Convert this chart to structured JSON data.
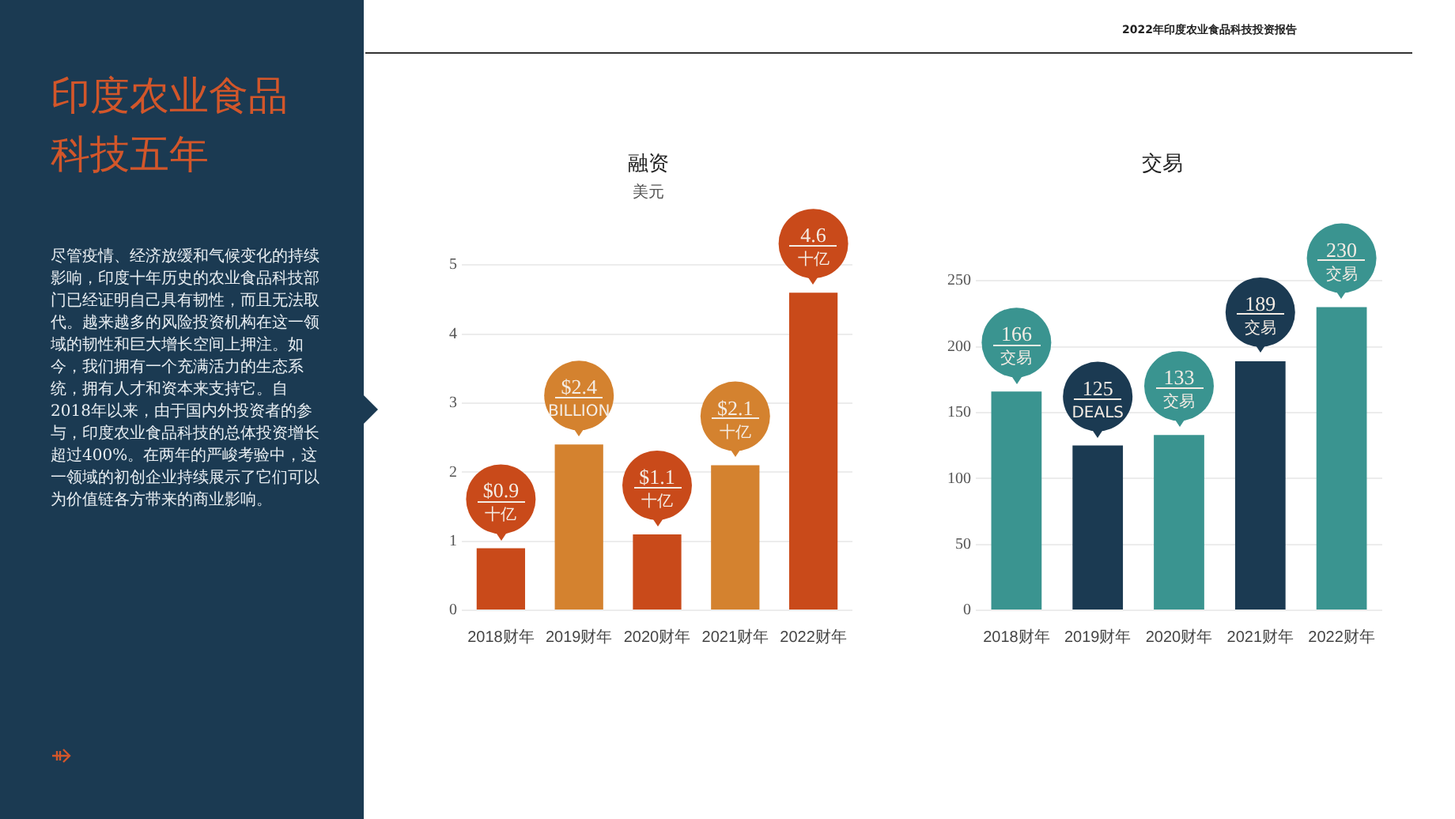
{
  "chart_data": [
    {
      "type": "other",
      "title": "印度农业食品科技五年",
      "annotations": [
        "尽管疫情、经济放缓和气候变化的持续影响，印度十年历史的农业食品科技部门已经证明自己具有韧性，而且无法取代。越来越多的风险投资机构在这一领域的韧性和巨大增长空间上押注。如今，我们拥有一个充满活力的生态系统，拥有人才和资本来支持它。自2018年以来，由于国内外投资者的参与，印度农业食品科技的总体投资增长超过400%。在两年的严峻考验中，这一领域的初创企业持续展示了它们可以为价值链各方带来的商业影响。",
        "2022年印度农业食品科技投资报告"
      ]
    },
    {
      "type": "bar",
      "title": "融资",
      "subtitle": "美元",
      "categories": [
        "2018财年",
        "2019财年",
        "2020财年",
        "2021财年",
        "2022财年"
      ],
      "values": [
        0.9,
        2.4,
        1.1,
        2.1,
        4.6
      ],
      "colors": [
        "#c94a1a",
        "#d4822f",
        "#c94a1a",
        "#d4822f",
        "#c94a1a"
      ],
      "value_labels": [
        "$0.9\n十亿",
        "$2.4\nBILLION",
        "$1.1\n十亿",
        "$2.1\n十亿",
        "4.6\n十亿"
      ],
      "ylim": [
        0,
        5
      ],
      "yticks": [
        0,
        1,
        2,
        3,
        4,
        5
      ],
      "grid": "y",
      "legend": false
    },
    {
      "type": "bar",
      "title": "交易",
      "categories": [
        "2018财年",
        "2019财年",
        "2020财年",
        "2021财年",
        "2022财年"
      ],
      "values": [
        166,
        125,
        133,
        189,
        230
      ],
      "colors": [
        "#3a9490",
        "#1b3a52",
        "#3a9490",
        "#1b3a52",
        "#3a9490"
      ],
      "value_labels": [
        "166\n交易",
        "125\nDEALS",
        "133\n交易",
        "189\n交易",
        "230\n交易"
      ],
      "ylim": [
        0,
        250
      ],
      "yticks": [
        0,
        50,
        100,
        150,
        200,
        250
      ],
      "grid": "y",
      "legend": false
    }
  ]
}
